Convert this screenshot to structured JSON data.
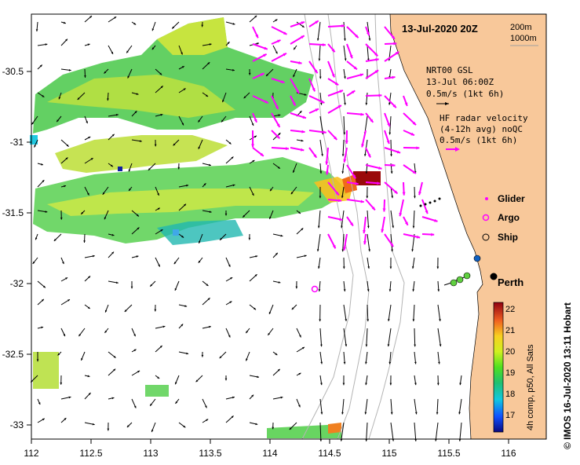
{
  "map": {
    "date_title": "13-Jul-2020 20Z",
    "scale_labels": [
      "200m",
      "1000m"
    ],
    "city_label": "Perth",
    "credit": "© IMOS 16-Jul-2020 13:11 Hobart",
    "axes": {
      "x_ticks": [
        "112",
        "112.5",
        "113",
        "113.5",
        "114",
        "114.5",
        "115",
        "115.5",
        "116"
      ],
      "y_ticks": [
        "-30.5",
        "-31",
        "-31.5",
        "-32",
        "-32.5",
        "-33"
      ]
    },
    "current_legend": {
      "model_title": "NRT00 GSL",
      "model_date": "13-Jul 06:00Z",
      "model_scale": "0.5m/s (1kt 6h)",
      "radar_title": "HF radar velocity",
      "radar_sub": "(4-12h avg) noQC",
      "radar_scale": "0.5m/s (1kt 6h)"
    },
    "platforms": [
      {
        "label": "Glider",
        "color": "#ff00ff"
      },
      {
        "label": "Argo",
        "color": "#ff00ff"
      },
      {
        "label": "Ship",
        "color": "#000000"
      }
    ],
    "colorbar": {
      "ticks": [
        "22",
        "21",
        "20",
        "19",
        "18",
        "17"
      ],
      "label": "4h comp, p50, All Sats"
    },
    "colors": {
      "land": "#f8c89a",
      "radar_arrow": "#ff00ff",
      "model_arrow": "#000000"
    }
  }
}
